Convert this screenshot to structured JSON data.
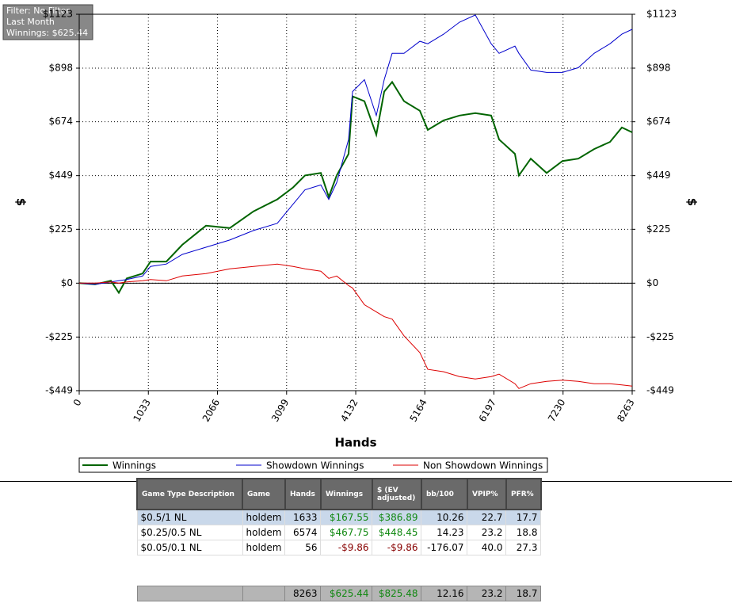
{
  "chart_data": {
    "type": "line",
    "filter_box": [
      "Filter: No Filter",
      "Last Month",
      "Winnings: $625.44"
    ],
    "x_label": "Hands",
    "y_label": "$",
    "xlim": [
      0,
      8263
    ],
    "xticks": [
      0,
      1033,
      2066,
      3099,
      4132,
      5164,
      6197,
      7230,
      8263
    ],
    "ylim": [
      -449,
      1123
    ],
    "yticks": [
      {
        "value": -449,
        "label": "-$449"
      },
      {
        "value": -225,
        "label": "-$225"
      },
      {
        "value": 0,
        "label": "$0"
      },
      {
        "value": 225,
        "label": "$225"
      },
      {
        "value": 449,
        "label": "$449"
      },
      {
        "value": 674,
        "label": "$674"
      },
      {
        "value": 898,
        "label": "$898"
      },
      {
        "value": 1123,
        "label": "$1123"
      }
    ],
    "grid": true,
    "x": [
      0,
      237,
      474,
      592,
      710,
      947,
      1065,
      1302,
      1539,
      1894,
      2249,
      2604,
      2960,
      3196,
      3374,
      3611,
      3729,
      3847,
      4025,
      4084,
      4262,
      4439,
      4558,
      4676,
      4854,
      5090,
      5209,
      5446,
      5682,
      5919,
      6156,
      6274,
      6511,
      6570,
      6748,
      6984,
      7221,
      7458,
      7695,
      7931,
      8109,
      8263
    ],
    "series": [
      {
        "name": "Winnings",
        "color": "#006400",
        "values": [
          0,
          -5,
          10,
          -40,
          20,
          40,
          90,
          90,
          160,
          240,
          230,
          300,
          350,
          400,
          450,
          460,
          360,
          450,
          540,
          780,
          760,
          620,
          800,
          840,
          760,
          720,
          640,
          680,
          700,
          710,
          700,
          600,
          540,
          450,
          520,
          460,
          510,
          520,
          560,
          590,
          650,
          630
        ]
      },
      {
        "name": "Showdown Winnings",
        "color": "#0000cc",
        "values": [
          0,
          -5,
          5,
          10,
          15,
          30,
          70,
          80,
          120,
          150,
          180,
          220,
          250,
          330,
          390,
          410,
          350,
          420,
          600,
          800,
          850,
          700,
          850,
          960,
          960,
          1010,
          1000,
          1040,
          1090,
          1120,
          1000,
          960,
          990,
          960,
          890,
          880,
          880,
          900,
          960,
          1000,
          1040,
          1060
        ]
      },
      {
        "name": "Non Showdown Winnings",
        "color": "#dd0000",
        "values": [
          0,
          0,
          5,
          0,
          5,
          10,
          15,
          10,
          30,
          40,
          60,
          70,
          80,
          70,
          60,
          50,
          20,
          30,
          -10,
          -20,
          -90,
          -120,
          -140,
          -150,
          -220,
          -290,
          -360,
          -370,
          -390,
          -400,
          -390,
          -380,
          -420,
          -440,
          -420,
          -410,
          -405,
          -410,
          -420,
          -420,
          -425,
          -430
        ]
      }
    ]
  },
  "table": {
    "columns": [
      "Game Type Description",
      "Game",
      "Hands",
      "Winnings",
      "$ (EV adjusted)",
      "bb/100",
      "VPIP%",
      "PFR%"
    ],
    "rows": [
      [
        "$0.5/1 NL",
        "holdem",
        "1633",
        "$167.55",
        "$386.89",
        "10.26",
        "22.7",
        "17.7"
      ],
      [
        "$0.25/0.5 NL",
        "holdem",
        "6574",
        "$467.75",
        "$448.45",
        "14.23",
        "23.2",
        "18.8"
      ],
      [
        "$0.05/0.1 NL",
        "holdem",
        "56",
        "-$9.86",
        "-$9.86",
        "-176.07",
        "40.0",
        "27.3"
      ]
    ],
    "totals": [
      null,
      null,
      "8263",
      "$625.44",
      "$825.48",
      "12.16",
      "23.2",
      "18.7"
    ]
  }
}
